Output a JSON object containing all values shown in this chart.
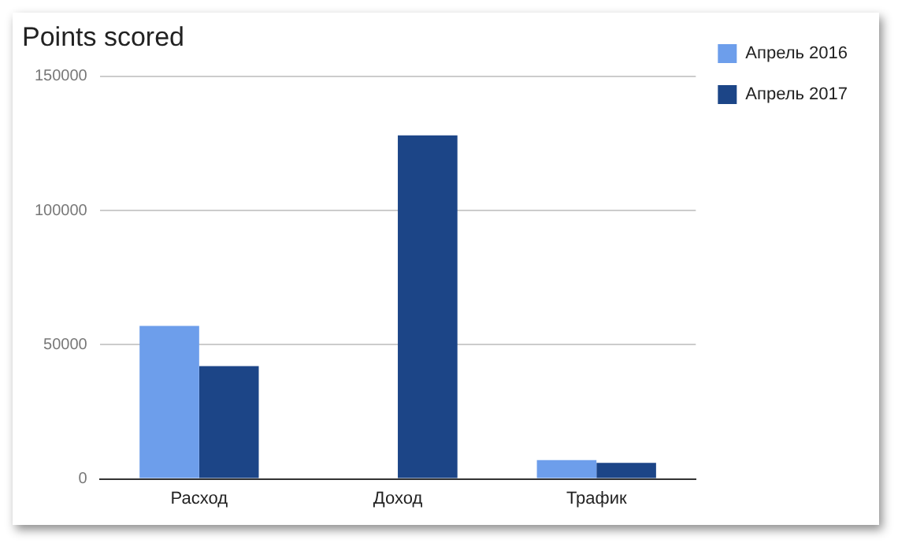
{
  "chart_data": {
    "type": "bar",
    "title": "Points scored",
    "categories": [
      "Расход",
      "Доход",
      "Трафик"
    ],
    "series": [
      {
        "name": "Апрель 2016",
        "color": "#6d9eeb",
        "values": [
          57000,
          0,
          7000
        ]
      },
      {
        "name": "Апрель 2017",
        "color": "#1c4587",
        "values": [
          42000,
          128000,
          6000
        ]
      }
    ],
    "ylim": [
      0,
      150000
    ],
    "yticks": [
      0,
      50000,
      100000,
      150000
    ],
    "grid": "y",
    "legend": "top right"
  }
}
